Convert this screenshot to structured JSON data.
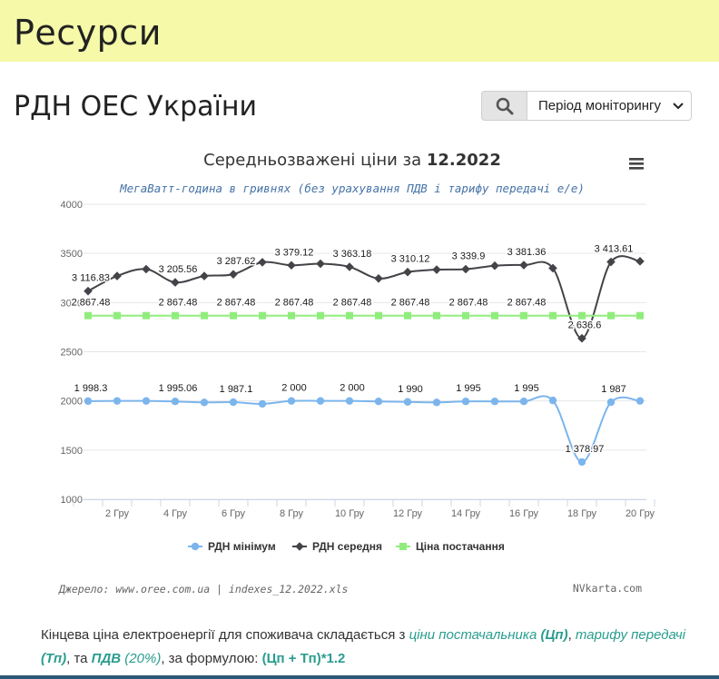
{
  "header": {
    "title": "Ресурси"
  },
  "page": {
    "title": "РДН ОЕС України"
  },
  "toolbar": {
    "period_label": "Період моніторингу"
  },
  "chart_data": {
    "type": "line",
    "title_prefix": "Середньозважені ціни за ",
    "title_bold": "12.2022",
    "subtitle": "МегаВатт-година в гривнях (без урахування ПДВ і тарифу передачі е/е)",
    "credits_left": "Джерело: www.oree.com.ua | indexes_12.2022.xls",
    "credits_right": "NVkarta.com",
    "x": [
      1,
      2,
      3,
      4,
      5,
      6,
      7,
      8,
      9,
      10,
      11,
      12,
      13,
      14,
      15,
      16,
      17,
      18,
      19,
      20
    ],
    "x_tick_labels": [
      "2 Гру",
      "4 Гру",
      "6 Гру",
      "8 Гру",
      "10 Гру",
      "12 Гру",
      "14 Гру",
      "16 Гру",
      "18 Гру",
      "20 Гру"
    ],
    "x_tick_values": [
      2,
      4,
      6,
      8,
      10,
      12,
      14,
      16,
      18,
      20
    ],
    "ylim": [
      1000,
      4000
    ],
    "y_ticks": [
      1000,
      1500,
      2000,
      2500,
      3000,
      3500,
      4000
    ],
    "grid": true,
    "legend_position": "bottom",
    "series": [
      {
        "name": "РДН мінімум",
        "color": "#7cb5ec",
        "marker": "circle",
        "values": [
          1998.3,
          2000,
          2000,
          1995.06,
          1985,
          1987.1,
          1970,
          2000,
          2000,
          2000,
          1995,
          1990,
          1985,
          1995,
          1995,
          1995,
          2005,
          1378.97,
          1987,
          2000
        ],
        "labels": [
          {
            "i": 0,
            "text": "1 998.3"
          },
          {
            "i": 3,
            "text": "1 995.06"
          },
          {
            "i": 5,
            "text": "1 987.1"
          },
          {
            "i": 7,
            "text": "2 000"
          },
          {
            "i": 9,
            "text": "2 000"
          },
          {
            "i": 11,
            "text": "1 990"
          },
          {
            "i": 13,
            "text": "1 995"
          },
          {
            "i": 15,
            "text": "1 995"
          },
          {
            "i": 17,
            "text": "1 378.97"
          },
          {
            "i": 18,
            "text": "1 987"
          }
        ]
      },
      {
        "name": "РДН середня",
        "color": "#434348",
        "marker": "diamond",
        "values": [
          3116.83,
          3270,
          3340,
          3205.56,
          3270,
          3287.62,
          3410,
          3379.12,
          3395,
          3363.18,
          3245,
          3310.12,
          3335,
          3339.9,
          3375,
          3381.36,
          3350,
          2636.6,
          3413.61,
          3420
        ],
        "labels": [
          {
            "i": 0,
            "text": "3 116.83"
          },
          {
            "i": 3,
            "text": "3 205.56"
          },
          {
            "i": 5,
            "text": "3 287.62"
          },
          {
            "i": 7,
            "text": "3 379.12"
          },
          {
            "i": 9,
            "text": "3 363.18"
          },
          {
            "i": 11,
            "text": "3 310.12"
          },
          {
            "i": 13,
            "text": "3 339.9"
          },
          {
            "i": 15,
            "text": "3 381.36"
          },
          {
            "i": 17,
            "text": "2 636.6"
          },
          {
            "i": 18,
            "text": "3 413.61"
          }
        ]
      },
      {
        "name": "Ціна постачання",
        "color": "#90ed7d",
        "marker": "square",
        "values": [
          2867.48,
          2867.48,
          2867.48,
          2867.48,
          2867.48,
          2867.48,
          2867.48,
          2867.48,
          2867.48,
          2867.48,
          2867.48,
          2867.48,
          2867.48,
          2867.48,
          2867.48,
          2867.48,
          2867.48,
          2867.48,
          2867.48,
          2867.48
        ],
        "labels": [
          {
            "i": 0,
            "text": "2 867.48"
          },
          {
            "i": 3,
            "text": "2 867.48"
          },
          {
            "i": 5,
            "text": "2 867.48"
          },
          {
            "i": 7,
            "text": "2 867.48"
          },
          {
            "i": 9,
            "text": "2 867.48"
          },
          {
            "i": 11,
            "text": "2 867.48"
          },
          {
            "i": 13,
            "text": "2 867.48"
          },
          {
            "i": 15,
            "text": "2 867.48"
          }
        ]
      }
    ]
  },
  "footer": {
    "t1": "Кінцева ціна електроенергії для споживача складається з ",
    "l1": "ціни постачальника ",
    "l1b": "(Цп)",
    "t2": ", ",
    "l2": "тарифу передачі ",
    "l2b": "(Тп)",
    "t3": ", та ",
    "l3b": "ПДВ",
    "l3": " (20%)",
    "t4": ", за формулою: ",
    "formula": "(Цп + Тп)*1.2"
  }
}
